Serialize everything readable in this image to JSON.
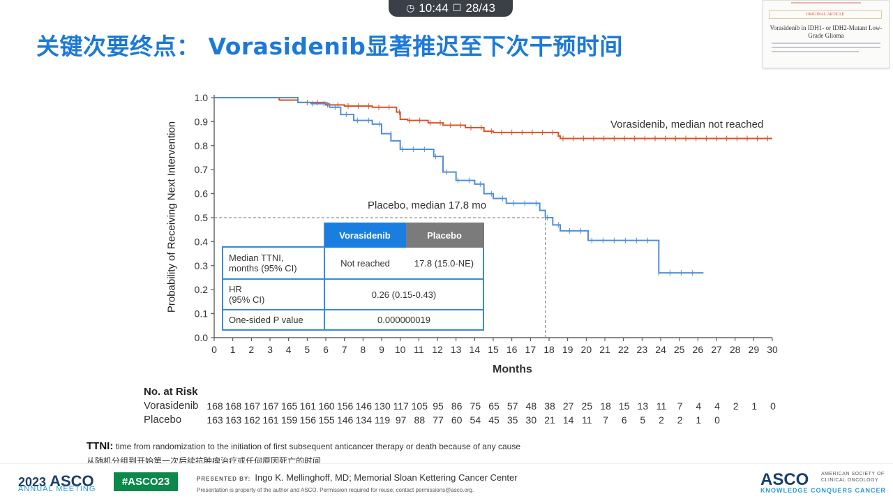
{
  "top_bar": {
    "clock_icon": "clock-icon",
    "time": "10:44",
    "page_icon": "page-icon",
    "page": "28/43"
  },
  "slide_title": "关键次要终点： Vorasidenib显著推迟至下次干预时间",
  "paper_thumbnail": {
    "tag": "ORIGINAL ARTICLE",
    "title": "Vorasidenib in IDH1- or IDH2-Mutant Low-Grade Glioma"
  },
  "annotations": {
    "vorasidenib": "Vorasidenib, median not reached",
    "placebo": "Placebo, median 17.8 mo"
  },
  "stats_table": {
    "headers": [
      "Vorasidenib",
      "Placebo"
    ],
    "rows": [
      {
        "label_line1": "Median TTNI,",
        "label_line2": "months (95% CI)",
        "vorasidenib": "Not reached",
        "placebo": "17.8 (15.0-NE)"
      },
      {
        "label_line1": "HR",
        "label_line2": "(95% CI)",
        "value": "0.26 (0.15-0.43)"
      },
      {
        "label_line1": "One-sided P value",
        "value": "0.000000019"
      }
    ]
  },
  "chart_data": {
    "type": "line",
    "xlabel": "Months",
    "ylabel": "Probability of Receiving Next Intervention",
    "xlim": [
      0,
      30
    ],
    "ylim": [
      0,
      1.0
    ],
    "x_ticks": [
      "0",
      "1",
      "2",
      "3",
      "4",
      "5",
      "6",
      "7",
      "8",
      "9",
      "10",
      "11",
      "12",
      "13",
      "14",
      "15",
      "16",
      "17",
      "18",
      "19",
      "20",
      "21",
      "22",
      "23",
      "24",
      "25",
      "26",
      "27",
      "28",
      "29",
      "30"
    ],
    "y_ticks": [
      "0.0",
      "0.1",
      "0.2",
      "0.3",
      "0.4",
      "0.5",
      "0.6",
      "0.7",
      "0.8",
      "0.9",
      "1.0"
    ],
    "median_reference": {
      "y": 0.5,
      "x": 17.8
    },
    "series": [
      {
        "name": "Vorasidenib",
        "color": "#d9532a",
        "x": [
          0,
          3.5,
          4.5,
          6,
          7,
          8.5,
          9.8,
          10,
          10.4,
          11.5,
          12.3,
          13.5,
          14.5,
          15,
          17,
          18.5,
          18.6,
          30
        ],
        "y": [
          1.0,
          0.99,
          0.98,
          0.97,
          0.965,
          0.96,
          0.94,
          0.91,
          0.905,
          0.895,
          0.885,
          0.875,
          0.86,
          0.855,
          0.855,
          0.84,
          0.83,
          0.83
        ]
      },
      {
        "name": "Placebo",
        "color": "#4f8fd9",
        "x": [
          0,
          4.5,
          5.2,
          6.2,
          6.8,
          7.5,
          8.5,
          9,
          9.5,
          10,
          11.8,
          12.3,
          13,
          14,
          14.5,
          15,
          15.7,
          17.5,
          17.8,
          18.2,
          18.6,
          20.1,
          23.9,
          26.3
        ],
        "y": [
          1.0,
          0.98,
          0.975,
          0.96,
          0.93,
          0.905,
          0.89,
          0.85,
          0.82,
          0.785,
          0.755,
          0.69,
          0.655,
          0.64,
          0.6,
          0.58,
          0.56,
          0.53,
          0.5,
          0.47,
          0.445,
          0.405,
          0.27,
          0.27
        ]
      }
    ]
  },
  "risk_table": {
    "title": "No. at Risk",
    "rows": [
      {
        "label": "Vorasidenib",
        "values": [
          "168",
          "168",
          "167",
          "167",
          "165",
          "161",
          "160",
          "156",
          "146",
          "130",
          "117",
          "105",
          "95",
          "86",
          "75",
          "65",
          "57",
          "48",
          "38",
          "27",
          "25",
          "18",
          "15",
          "13",
          "11",
          "7",
          "4",
          "4",
          "2",
          "1",
          "0"
        ]
      },
      {
        "label": "Placebo",
        "values": [
          "163",
          "163",
          "162",
          "161",
          "159",
          "156",
          "155",
          "146",
          "134",
          "119",
          "97",
          "88",
          "77",
          "60",
          "54",
          "45",
          "35",
          "30",
          "21",
          "14",
          "11",
          "7",
          "6",
          "5",
          "2",
          "2",
          "1",
          "0"
        ]
      }
    ]
  },
  "definition": {
    "term": "TTNI:",
    "text": "time from randomization to the initiation of first subsequent anticancer therapy or death because of any cause",
    "zh": "从随机分组到开始第一次后续抗肿瘤治疗或任何原因死亡的时间"
  },
  "footer": {
    "year": "2023",
    "asco": "ASCO",
    "annual_meeting": "ANNUAL MEETING",
    "hashtag": "#ASCO23",
    "presented_by_label": "PRESENTED BY:",
    "presenter": "Ingo K. Mellinghoff, MD; Memorial Sloan Kettering Cancer Center",
    "note": "Presentation is property of the author and ASCO. Permission required for reuse; contact permissions@asco.org.",
    "asco_logo": "ASCO",
    "society_line1": "AMERICAN SOCIETY OF",
    "society_line2": "CLINICAL ONCOLOGY",
    "tagline": "KNOWLEDGE CONQUERS CANCER",
    "colors": {
      "asco_navy": "#1b3f6b",
      "asco_blue": "#2a9bd6",
      "hashtag_green": "#0a8a4a"
    }
  }
}
